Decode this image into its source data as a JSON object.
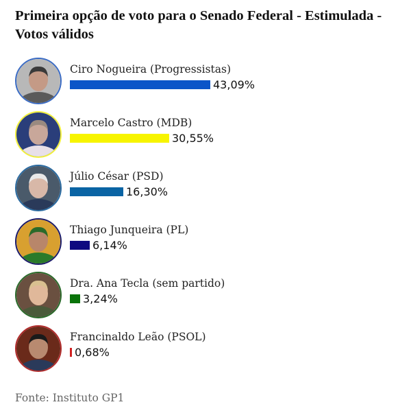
{
  "title": "Primeira opção de voto para o Senado Federal - Estimulada - Votos válidos",
  "source": "Fonte: Instituto GP1",
  "candidates": [
    {
      "name": "Ciro Nogueira (Progressistas)",
      "value_label": "43,09%",
      "color": "#0b55c8",
      "border": "#3a6bc4",
      "photo_bg": "#b8b8b8",
      "skin": "#c49a86",
      "hair": "#3a3a3a",
      "shirt": "#5a5a5a"
    },
    {
      "name": "Marcelo Castro (MDB)",
      "value_label": "30,55%",
      "color": "#f7f400",
      "border": "#f2f03a",
      "photo_bg": "#2a3e7a",
      "skin": "#c8a79a",
      "hair": "#9a8a80",
      "shirt": "#e8e0e8"
    },
    {
      "name": "Júlio César (PSD)",
      "value_label": "16,30%",
      "color": "#0a64a4",
      "border": "#2a6aa0",
      "photo_bg": "#4a5a6a",
      "skin": "#d8b8a8",
      "hair": "#e8e8e8",
      "shirt": "#2a3a5a"
    },
    {
      "name": "Thiago Junqueira (PL)",
      "value_label": "6,14%",
      "color": "#0f0a80",
      "border": "#1a1a6a",
      "photo_bg": "#d8a030",
      "skin": "#b8866a",
      "hair": "#2a6a2a",
      "shirt": "#2a7a2a"
    },
    {
      "name": "Dra. Ana Tecla (sem partido)",
      "value_label": "3,24%",
      "color": "#0a740a",
      "border": "#2a6a2a",
      "photo_bg": "#6a5040",
      "skin": "#e0b89a",
      "hair": "#d8c090",
      "shirt": "#4a5a3a"
    },
    {
      "name": "Francinaldo Leão (PSOL)",
      "value_label": "0,68%",
      "color": "#d02020",
      "border": "#b02a2a",
      "photo_bg": "#6a2a1a",
      "skin": "#b88a70",
      "hair": "#1a1a1a",
      "shirt": "#2a3a5a"
    }
  ],
  "chart_data": {
    "type": "bar",
    "orientation": "horizontal",
    "title": "Primeira opção de voto para o Senado Federal - Estimulada - Votos válidos",
    "categories": [
      "Ciro Nogueira (Progressistas)",
      "Marcelo Castro (MDB)",
      "Júlio César (PSD)",
      "Thiago Junqueira (PL)",
      "Dra. Ana Tecla (sem partido)",
      "Francinaldo Leão (PSOL)"
    ],
    "values": [
      43.09,
      30.55,
      16.3,
      6.14,
      3.24,
      0.68
    ],
    "value_labels": [
      "43,09%",
      "30,55%",
      "16,30%",
      "6,14%",
      "3,24%",
      "0,68%"
    ],
    "colors": [
      "#0b55c8",
      "#f7f400",
      "#0a64a4",
      "#0f0a80",
      "#0a740a",
      "#d02020"
    ],
    "unit": "%",
    "xlabel": "",
    "ylabel": "",
    "grid": false,
    "legend": "none",
    "source": "Fonte: Instituto GP1"
  }
}
